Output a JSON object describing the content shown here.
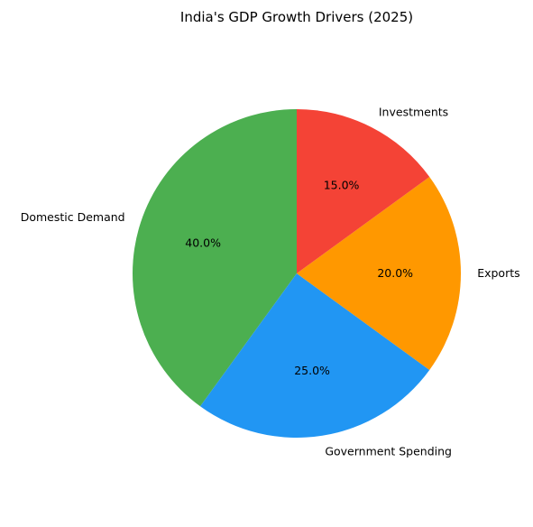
{
  "chart_data": {
    "type": "pie",
    "title": "India's GDP Growth Drivers (2025)",
    "slices": [
      {
        "label": "Domestic Demand",
        "value": 40.0,
        "pct_label": "40.0%",
        "color": "#4caf50"
      },
      {
        "label": "Government Spending",
        "value": 25.0,
        "pct_label": "25.0%",
        "color": "#2196f3"
      },
      {
        "label": "Exports",
        "value": 20.0,
        "pct_label": "20.0%",
        "color": "#ff9800"
      },
      {
        "label": "Investments",
        "value": 15.0,
        "pct_label": "15.0%",
        "color": "#f44336"
      }
    ],
    "start_angle_deg": 90,
    "direction": "counterclockwise"
  }
}
